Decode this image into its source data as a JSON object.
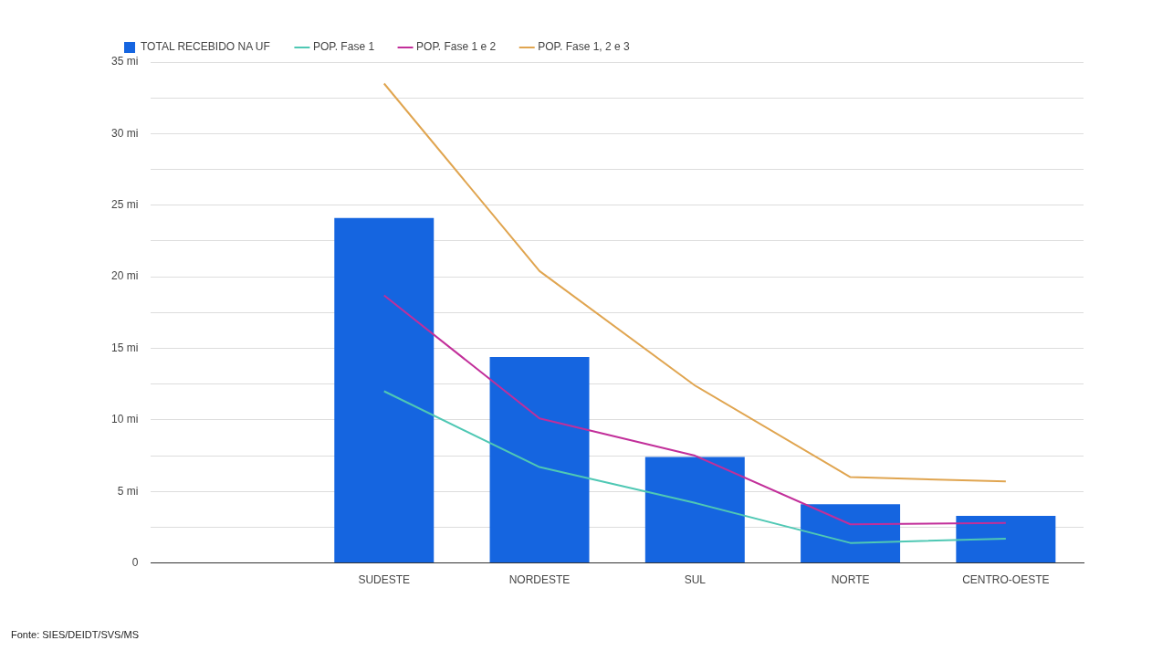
{
  "chart_data": {
    "type": "bar",
    "categories": [
      null,
      "SUDESTE",
      "NORDESTE",
      "SUL",
      "NORTE",
      "CENTRO-OESTE"
    ],
    "series": [
      {
        "name": "TOTAL RECEBIDO NA UF",
        "color": "#1565e0",
        "values": [
          null,
          24.1,
          14.4,
          7.4,
          4.1,
          3.3
        ]
      },
      {
        "name": "POP. Fase 1",
        "type": "line",
        "color": "#4fc8b4",
        "values": [
          null,
          12.0,
          6.7,
          4.2,
          1.4,
          1.7
        ]
      },
      {
        "name": "POP. Fase 1 e 2",
        "type": "line",
        "color": "#c22f9a",
        "values": [
          null,
          18.7,
          10.1,
          7.5,
          2.7,
          2.8
        ]
      },
      {
        "name": "POP. Fase 1, 2 e 3",
        "type": "line",
        "color": "#e0a550",
        "values": [
          null,
          33.5,
          20.4,
          12.4,
          6.0,
          5.7
        ]
      }
    ],
    "ylim": [
      0,
      35
    ],
    "yticks": [
      {
        "value": 0,
        "label": "0"
      },
      {
        "value": 2.5,
        "label": null
      },
      {
        "value": 5,
        "label": "5 mi"
      },
      {
        "value": 7.5,
        "label": null
      },
      {
        "value": 10,
        "label": "10 mi"
      },
      {
        "value": 12.5,
        "label": null
      },
      {
        "value": 15,
        "label": "15 mi"
      },
      {
        "value": 17.5,
        "label": null
      },
      {
        "value": 20,
        "label": "20 mi"
      },
      {
        "value": 22.5,
        "label": null
      },
      {
        "value": 25,
        "label": "25 mi"
      },
      {
        "value": 27.5,
        "label": null
      },
      {
        "value": 30,
        "label": "30 mi"
      },
      {
        "value": 32.5,
        "label": null
      },
      {
        "value": 35,
        "label": "35 mi"
      }
    ],
    "grid": "y",
    "legend": "top",
    "annotations": [
      "Fonte: SIES/DEIDT/SVS/MS"
    ]
  }
}
